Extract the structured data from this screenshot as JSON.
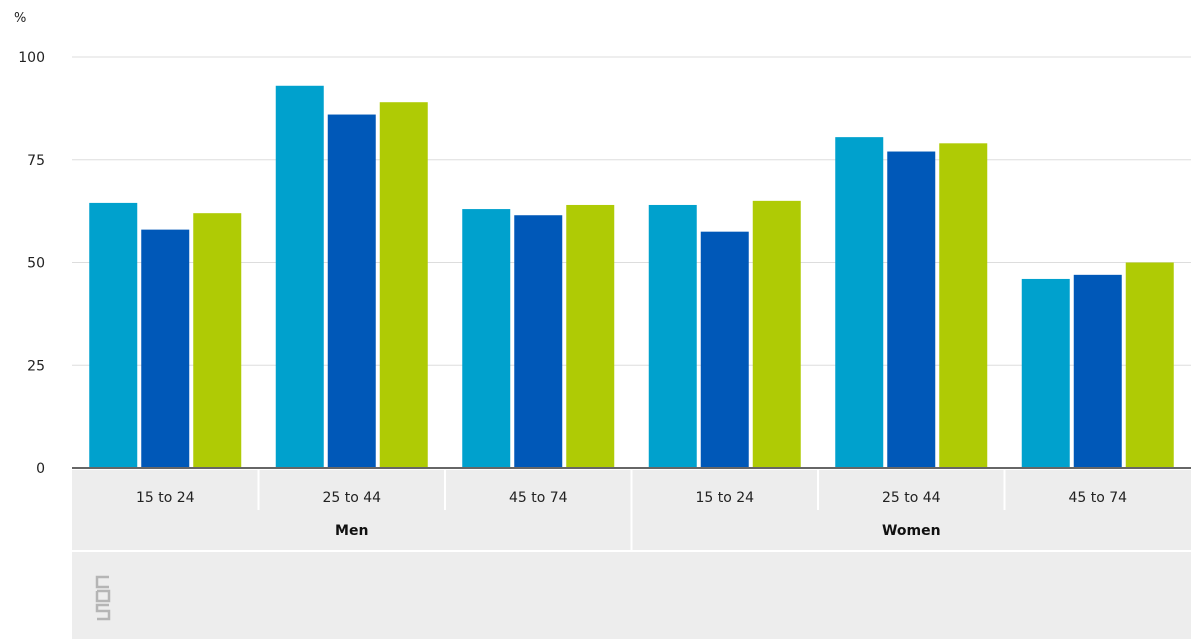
{
  "chart_data": {
    "type": "bar",
    "ylabel": "%",
    "ylim": [
      0,
      100
    ],
    "yticks": [
      0,
      25,
      50,
      75,
      100
    ],
    "grid": true,
    "groups": [
      {
        "label": "Men",
        "categories": [
          "15 to 24",
          "25 to 44",
          "45 to 74"
        ]
      },
      {
        "label": "Women",
        "categories": [
          "15 to 24",
          "25 to 44",
          "45 to 74"
        ]
      }
    ],
    "series": [
      {
        "color": "#00a1cd",
        "values": [
          64.5,
          93,
          63,
          64,
          80.5,
          46
        ]
      },
      {
        "color": "#0058b8",
        "values": [
          58,
          86,
          61.5,
          57.5,
          77,
          47
        ]
      },
      {
        "color": "#afcb05",
        "values": [
          62,
          89,
          64,
          65,
          79,
          50
        ]
      }
    ]
  },
  "footer": {
    "logo_icon": "cbs-logo-icon",
    "logo_text": "cbs"
  }
}
